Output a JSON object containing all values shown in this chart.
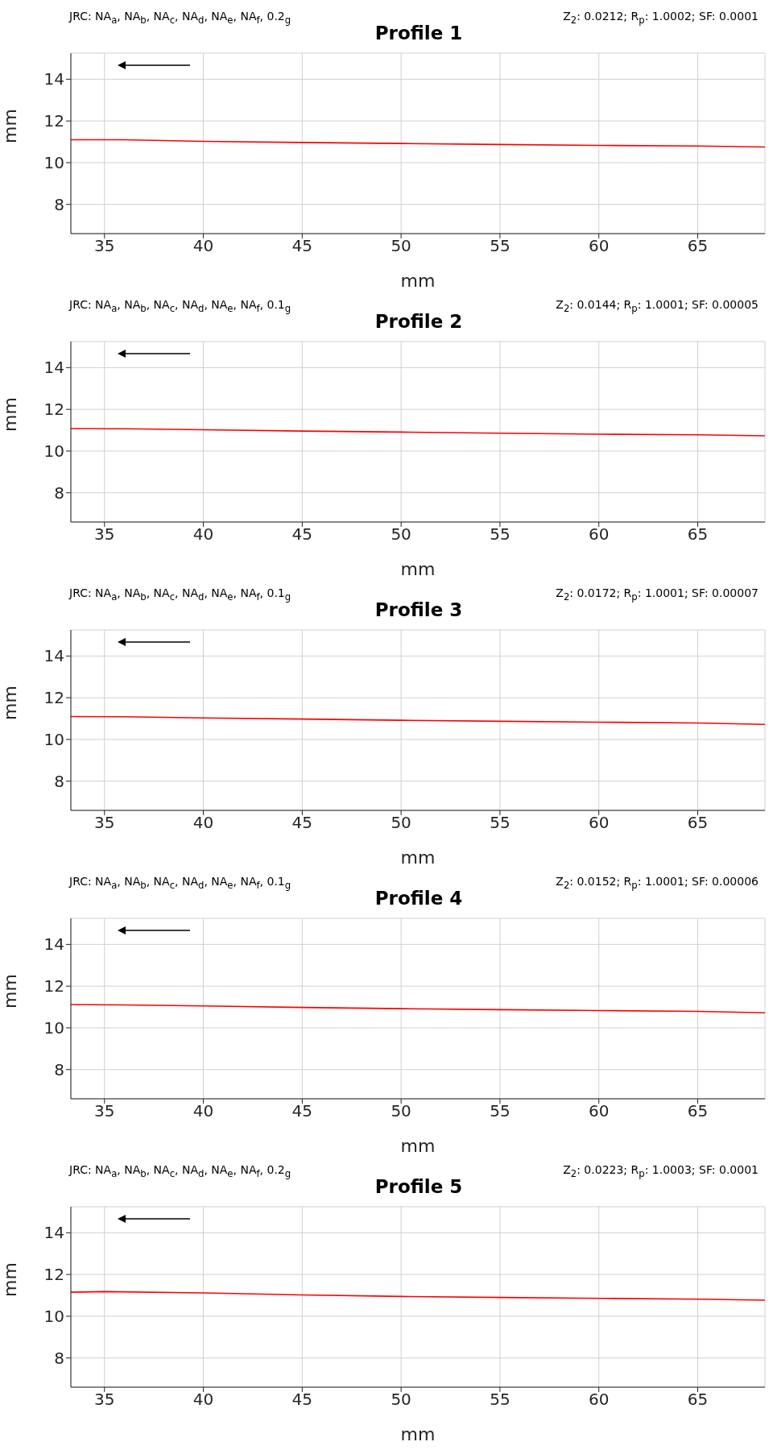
{
  "chart_data": [
    {
      "type": "line",
      "title": "Profile 1",
      "xlabel": "mm",
      "ylabel": "mm",
      "annotations": [
        "JRC: NA$_{a}$, NA$_{b}$, NA$_{c}$, NA$_{d}$, NA$_{e}$, NA$_{f}$, 0.2$_{g}$",
        "Z$_{2}$: 0.0212; R$_{p}$: 1.0002; SF: 0.0001"
      ],
      "x": [
        33.3,
        36,
        40,
        45,
        50,
        55,
        60,
        65,
        68.4
      ],
      "series": [
        {
          "color": "#ff0000",
          "values": [
            11.1,
            11.1,
            11.02,
            10.97,
            10.92,
            10.87,
            10.83,
            10.8,
            10.75
          ]
        }
      ],
      "xlim": [
        33.3,
        68.4
      ],
      "ylim": [
        6.6,
        15.25
      ],
      "xticks": [
        35,
        40,
        45,
        50,
        55,
        60,
        65
      ],
      "yticks": [
        8,
        10,
        12,
        14
      ],
      "grid": true
    },
    {
      "type": "line",
      "title": "Profile 2",
      "xlabel": "mm",
      "ylabel": "mm",
      "annotations": [
        "JRC: NA$_{a}$, NA$_{b}$, NA$_{c}$, NA$_{d}$, NA$_{e}$, NA$_{f}$, 0.1$_{g}$",
        "Z$_{2}$: 0.0144; R$_{p}$: 1.0001; SF: 0.00005"
      ],
      "x": [
        33.3,
        36,
        40,
        45,
        50,
        55,
        60,
        65,
        68.4
      ],
      "series": [
        {
          "color": "#ff0000",
          "values": [
            11.08,
            11.07,
            11.02,
            10.96,
            10.91,
            10.86,
            10.81,
            10.78,
            10.73
          ]
        }
      ],
      "xlim": [
        33.3,
        68.4
      ],
      "ylim": [
        6.6,
        15.25
      ],
      "xticks": [
        35,
        40,
        45,
        50,
        55,
        60,
        65
      ],
      "yticks": [
        8,
        10,
        12,
        14
      ],
      "grid": true
    },
    {
      "type": "line",
      "title": "Profile 3",
      "xlabel": "mm",
      "ylabel": "mm",
      "annotations": [
        "JRC: NA$_{a}$, NA$_{b}$, NA$_{c}$, NA$_{d}$, NA$_{e}$, NA$_{f}$, 0.1$_{g}$",
        "Z$_{2}$: 0.0172; R$_{p}$: 1.0001; SF: 0.00007"
      ],
      "x": [
        33.3,
        36,
        40,
        45,
        50,
        55,
        60,
        65,
        68.4
      ],
      "series": [
        {
          "color": "#ff0000",
          "values": [
            11.1,
            11.09,
            11.03,
            10.98,
            10.92,
            10.87,
            10.83,
            10.79,
            10.72
          ]
        }
      ],
      "xlim": [
        33.3,
        68.4
      ],
      "ylim": [
        6.6,
        15.25
      ],
      "xticks": [
        35,
        40,
        45,
        50,
        55,
        60,
        65
      ],
      "yticks": [
        8,
        10,
        12,
        14
      ],
      "grid": true
    },
    {
      "type": "line",
      "title": "Profile 4",
      "xlabel": "mm",
      "ylabel": "mm",
      "annotations": [
        "JRC: NA$_{a}$, NA$_{b}$, NA$_{c}$, NA$_{d}$, NA$_{e}$, NA$_{f}$, 0.1$_{g}$",
        "Z$_{2}$: 0.0152; R$_{p}$: 1.0001; SF: 0.00006"
      ],
      "x": [
        33.3,
        36,
        40,
        45,
        50,
        55,
        60,
        65,
        68.4
      ],
      "series": [
        {
          "color": "#ff0000",
          "values": [
            11.12,
            11.1,
            11.05,
            10.98,
            10.92,
            10.87,
            10.83,
            10.79,
            10.72
          ]
        }
      ],
      "xlim": [
        33.3,
        68.4
      ],
      "ylim": [
        6.6,
        15.25
      ],
      "xticks": [
        35,
        40,
        45,
        50,
        55,
        60,
        65
      ],
      "yticks": [
        8,
        10,
        12,
        14
      ],
      "grid": true
    },
    {
      "type": "line",
      "title": "Profile 5",
      "xlabel": "mm",
      "ylabel": "mm",
      "annotations": [
        "JRC: NA$_{a}$, NA$_{b}$, NA$_{c}$, NA$_{d}$, NA$_{e}$, NA$_{f}$, 0.2$_{g}$",
        "Z$_{2}$: 0.0223; R$_{p}$: 1.0003; SF: 0.0001"
      ],
      "x": [
        33.3,
        35,
        40,
        45,
        50,
        55,
        60,
        65,
        68.4
      ],
      "series": [
        {
          "color": "#ff0000",
          "values": [
            11.15,
            11.18,
            11.12,
            11.02,
            10.95,
            10.9,
            10.86,
            10.82,
            10.77
          ]
        }
      ],
      "xlim": [
        33.3,
        68.4
      ],
      "ylim": [
        6.6,
        15.25
      ],
      "xticks": [
        35,
        40,
        45,
        50,
        55,
        60,
        65
      ],
      "yticks": [
        8,
        10,
        12,
        14
      ],
      "grid": true
    }
  ]
}
